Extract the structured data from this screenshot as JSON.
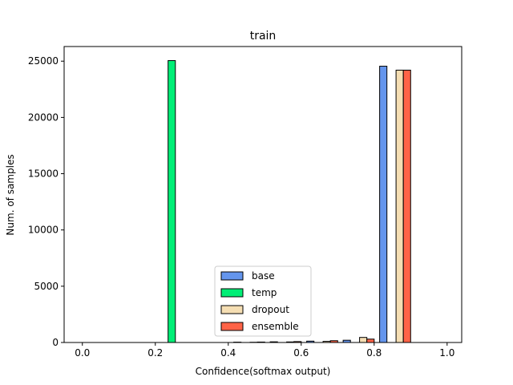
{
  "chart_data": {
    "type": "bar",
    "title": "train",
    "xlabel": "Confidence(softmax output)",
    "ylabel": "Num. of samples",
    "xlim": [
      -0.05,
      1.04
    ],
    "ylim": [
      0,
      26300
    ],
    "xticks": [
      0.0,
      0.2,
      0.4,
      0.6,
      0.8,
      1.0
    ],
    "xtick_labels": [
      "0.0",
      "0.2",
      "0.4",
      "0.6",
      "0.8",
      "1.0"
    ],
    "yticks": [
      0,
      5000,
      10000,
      15000,
      20000,
      25000
    ],
    "ytick_labels": [
      "0",
      "5000",
      "10000",
      "15000",
      "20000",
      "25000"
    ],
    "grid": false,
    "legend_position": "lower-center",
    "bin_width": 0.1,
    "bin_starts": [
      0.0,
      0.1,
      0.2,
      0.3,
      0.4,
      0.5,
      0.6,
      0.7,
      0.8,
      0.9
    ],
    "series": [
      {
        "name": "base",
        "color": "#6495ed",
        "values": [
          0,
          0,
          0,
          0,
          30,
          60,
          120,
          200,
          24550,
          0
        ]
      },
      {
        "name": "temp",
        "color": "#00ee76",
        "values": [
          0,
          0,
          25050,
          0,
          0,
          0,
          0,
          0,
          0,
          0
        ]
      },
      {
        "name": "dropout",
        "color": "#f5deb3",
        "values": [
          0,
          0,
          0,
          0,
          20,
          50,
          100,
          450,
          24200,
          0
        ]
      },
      {
        "name": "ensemble",
        "color": "#ff6347",
        "values": [
          0,
          0,
          0,
          0,
          40,
          80,
          160,
          300,
          24200,
          0
        ]
      }
    ],
    "bar_offsets": [
      0.015,
      0.035,
      0.06,
      0.08
    ],
    "bar_width": 0.02,
    "legend_colors": [
      "#6495ed",
      "#00ee76",
      "#f5deb3",
      "#ff6347"
    ]
  }
}
